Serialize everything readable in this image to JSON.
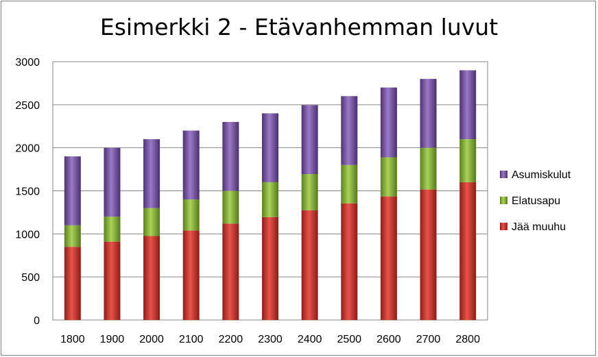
{
  "chart_data": {
    "type": "bar",
    "stacked": true,
    "title": "Esimerkki 2 - Etävanhemman luvut",
    "categories": [
      "1800",
      "1900",
      "2000",
      "2100",
      "2200",
      "2300",
      "2400",
      "2500",
      "2600",
      "2700",
      "2800"
    ],
    "series": [
      {
        "name": "Jää muuhu",
        "color": "#c0392b",
        "values": [
          850,
          910,
          975,
          1040,
          1120,
          1195,
          1275,
          1355,
          1435,
          1515,
          1600
        ]
      },
      {
        "name": "Elatusapu",
        "color": "#8cb43a",
        "values": [
          250,
          290,
          325,
          360,
          380,
          405,
          420,
          445,
          455,
          485,
          500
        ]
      },
      {
        "name": "Asumiskulut",
        "color": "#7a56a5",
        "values": [
          800,
          800,
          800,
          800,
          800,
          800,
          800,
          800,
          810,
          800,
          800
        ]
      }
    ],
    "legend_order": [
      "Asumiskulut",
      "Elatusapu",
      "Jää muuhu"
    ],
    "yticks": [
      0,
      500,
      1000,
      1500,
      2000,
      2500,
      3000
    ],
    "ylim": [
      0,
      3000
    ],
    "grid": true,
    "legend_position": "right"
  }
}
